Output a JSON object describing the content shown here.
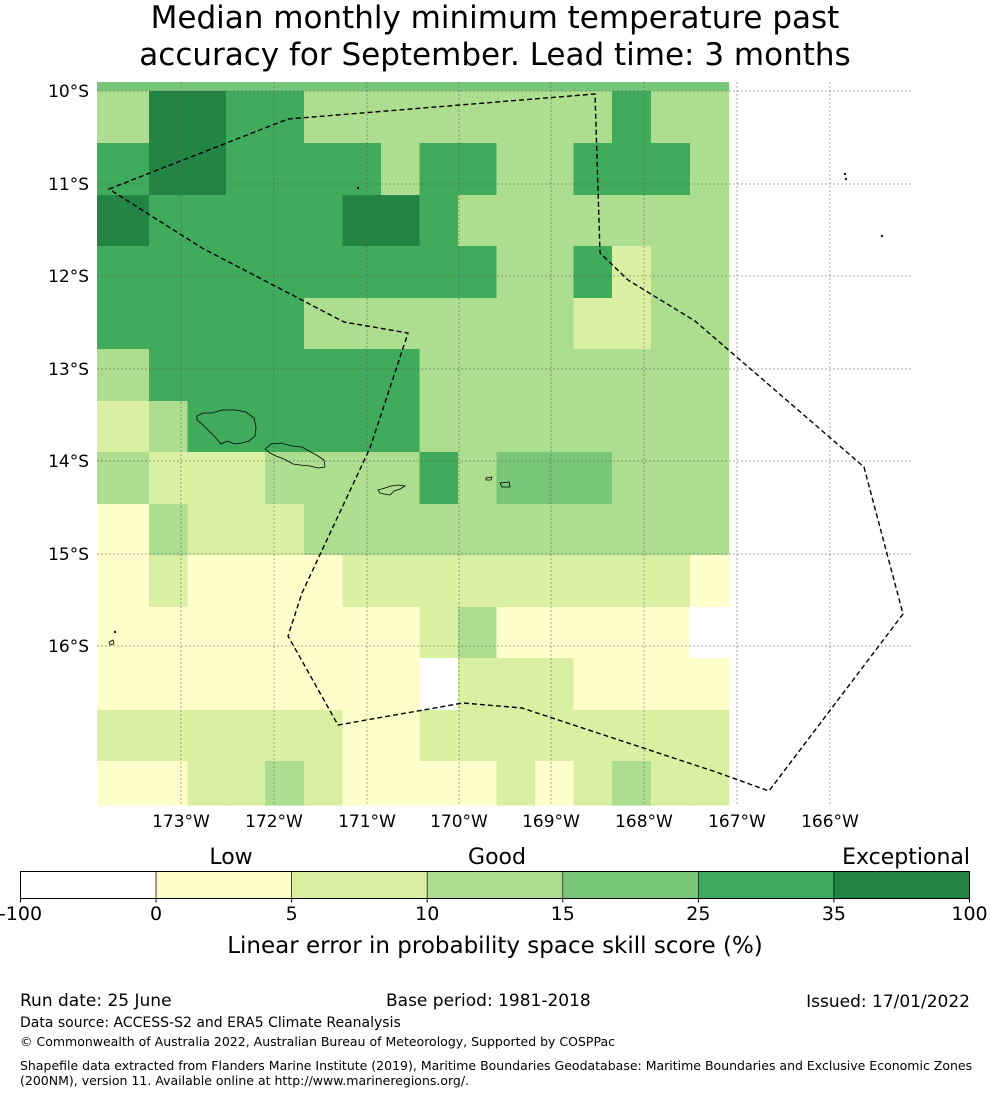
{
  "title": {
    "line1": "Median monthly minimum temperature past",
    "line2": "accuracy for September. Lead time: 3 months"
  },
  "map": {
    "lat_ticks": [
      "10°S",
      "11°S",
      "12°S",
      "13°S",
      "14°S",
      "15°S",
      "16°S"
    ],
    "lon_ticks": [
      "173°W",
      "172°W",
      "171°W",
      "170°W",
      "169°W",
      "168°W",
      "167°W",
      "166°W"
    ],
    "grid_rows": [
      [
        4,
        4,
        4,
        4,
        4,
        4,
        4,
        4,
        4,
        4,
        4,
        4,
        4,
        4,
        4,
        4
      ],
      [
        3,
        6,
        6,
        5,
        5,
        3,
        3,
        3,
        3,
        3,
        3,
        3,
        3,
        5,
        3,
        3
      ],
      [
        5,
        6,
        6,
        5,
        5,
        5,
        5,
        3,
        5,
        5,
        3,
        3,
        5,
        5,
        5,
        3
      ],
      [
        6,
        5,
        5,
        5,
        5,
        5,
        6,
        6,
        5,
        3,
        3,
        3,
        3,
        3,
        3,
        3
      ],
      [
        5,
        5,
        5,
        5,
        5,
        5,
        5,
        5,
        5,
        5,
        3,
        3,
        5,
        2,
        3,
        3
      ],
      [
        5,
        5,
        5,
        5,
        5,
        3,
        3,
        3,
        3,
        3,
        3,
        3,
        2,
        2,
        3,
        3
      ],
      [
        3,
        5,
        5,
        5,
        5,
        5,
        5,
        5,
        3,
        3,
        3,
        3,
        3,
        3,
        3,
        3
      ],
      [
        2,
        3,
        5,
        5,
        5,
        5,
        5,
        5,
        3,
        3,
        3,
        3,
        3,
        3,
        3,
        3
      ],
      [
        3,
        2,
        2,
        2,
        3,
        3,
        3,
        3,
        5,
        3,
        4,
        4,
        4,
        3,
        3,
        3
      ],
      [
        1,
        3,
        2,
        2,
        2,
        3,
        3,
        3,
        3,
        3,
        3,
        3,
        3,
        3,
        3,
        3
      ],
      [
        1,
        2,
        1,
        1,
        1,
        1,
        2,
        2,
        2,
        2,
        2,
        2,
        2,
        2,
        2,
        1
      ],
      [
        1,
        1,
        1,
        1,
        1,
        1,
        1,
        1,
        2,
        3,
        1,
        1,
        1,
        1,
        1,
        0
      ],
      [
        1,
        1,
        1,
        1,
        1,
        1,
        1,
        1,
        0,
        2,
        2,
        2,
        1,
        1,
        1,
        1
      ],
      [
        2,
        2,
        2,
        2,
        2,
        2,
        1,
        1,
        2,
        2,
        2,
        2,
        2,
        2,
        2,
        2
      ],
      [
        1,
        1,
        2,
        2,
        3,
        2,
        1,
        1,
        1,
        1,
        2,
        1,
        2,
        3,
        2,
        2
      ]
    ]
  },
  "colorbar": {
    "colors": [
      "#ffffff",
      "#ffffcc",
      "#d9f0a3",
      "#addd8e",
      "#78c679",
      "#41ab5d",
      "#238443"
    ],
    "ticks": [
      "-100",
      "0",
      "5",
      "10",
      "15",
      "25",
      "35",
      "100"
    ],
    "categories": [
      "Low",
      "Good",
      "Exceptional"
    ],
    "label": "Linear error in probability space skill score (%)"
  },
  "footer": {
    "run_date": "Run date: 25 June",
    "base_period": "Base period: 1981-2018",
    "issued": "Issued: 17/01/2022",
    "data_source": "Data source: ACCESS-S2 and ERA5 Climate Reanalysis",
    "copyright": "© Commonwealth of Australia 2022, Australian Bureau of Meteorology, Supported by COSPPac",
    "shapefile_line1": "Shapefile data extracted from Flanders Marine Institute (2019), Maritime Boundaries Geodatabase: Maritime Boundaries and Exclusive Economic Zones",
    "shapefile_line2": "(200NM), version 11. Available online at http://www.marineregions.org/."
  }
}
